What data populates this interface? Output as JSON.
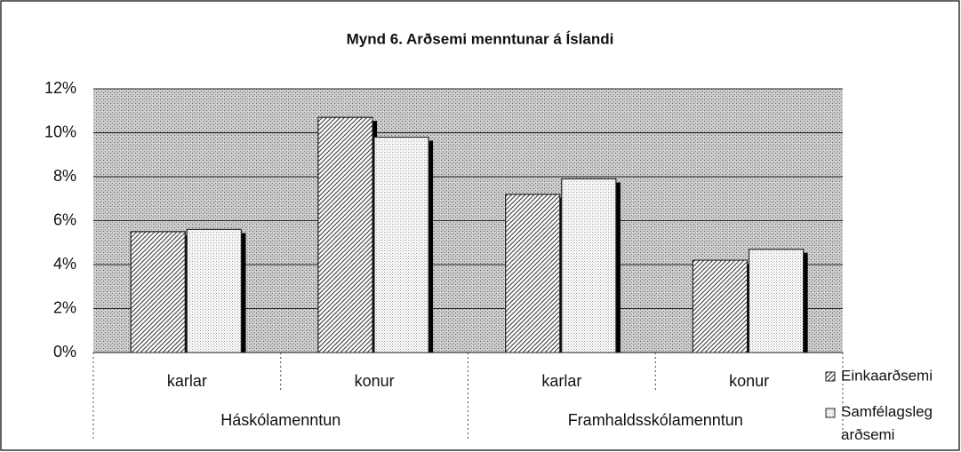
{
  "chart_data": {
    "type": "bar",
    "title": "Mynd 6.  Arðsemi menntunar á Íslandi",
    "categories": [
      "karlar",
      "konur",
      "karlar",
      "konur"
    ],
    "group_labels": [
      "Háskólamenntun",
      "Framhaldsskólamenntun"
    ],
    "series": [
      {
        "name": "Einkaarðsemi",
        "color": "#ffffff",
        "values": [
          5.5,
          10.7,
          7.2,
          4.2
        ]
      },
      {
        "name": "Samfélagsleg arðsemi",
        "color": "#ffffff",
        "values": [
          5.6,
          9.8,
          7.9,
          4.7
        ]
      }
    ],
    "ylim": [
      0,
      12
    ],
    "yticks": [
      {
        "value": 0,
        "label": "0%"
      },
      {
        "value": 2,
        "label": "2%"
      },
      {
        "value": 4,
        "label": "4%"
      },
      {
        "value": 6,
        "label": "6%"
      },
      {
        "value": 8,
        "label": "8%"
      },
      {
        "value": 10,
        "label": "10%"
      },
      {
        "value": 12,
        "label": "12%"
      }
    ],
    "grid": true,
    "legend": "right"
  }
}
